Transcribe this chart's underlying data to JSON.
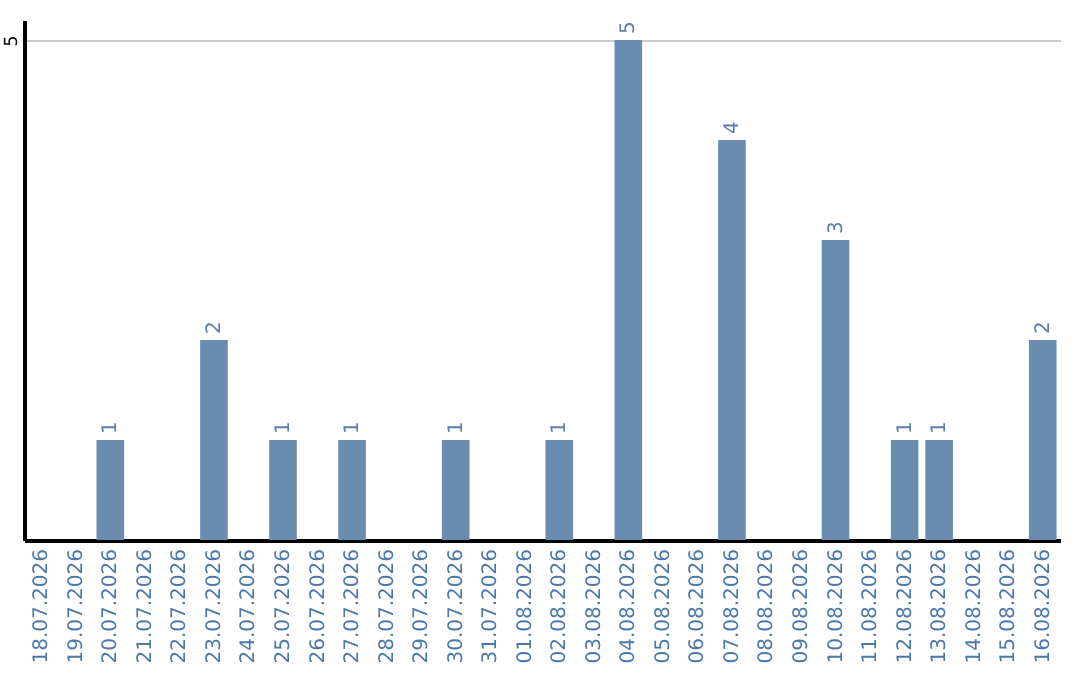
{
  "chart_data": {
    "type": "bar",
    "categories": [
      "18.07.2026",
      "19.07.2026",
      "20.07.2026",
      "21.07.2026",
      "22.07.2026",
      "23.07.2026",
      "24.07.2026",
      "25.07.2026",
      "26.07.2026",
      "27.07.2026",
      "28.07.2026",
      "29.07.2026",
      "30.07.2026",
      "31.07.2026",
      "01.08.2026",
      "02.08.2026",
      "03.08.2026",
      "04.08.2026",
      "05.08.2026",
      "06.08.2026",
      "07.08.2026",
      "08.08.2026",
      "09.08.2026",
      "10.08.2026",
      "11.08.2026",
      "12.08.2026",
      "13.08.2026",
      "14.08.2026",
      "15.08.2026",
      "16.08.2026"
    ],
    "values": [
      0,
      0,
      1,
      0,
      0,
      2,
      0,
      1,
      0,
      1,
      0,
      0,
      1,
      0,
      0,
      1,
      0,
      5,
      0,
      0,
      4,
      0,
      0,
      3,
      0,
      1,
      1,
      0,
      0,
      2
    ],
    "value_labels": [
      null,
      null,
      "1",
      null,
      null,
      "2",
      null,
      "1",
      null,
      "1",
      null,
      null,
      "1",
      null,
      null,
      "1",
      null,
      "5",
      null,
      null,
      "4",
      null,
      null,
      "3",
      null,
      "1",
      "1",
      null,
      null,
      "2"
    ],
    "color": "#6a8caf",
    "ylim": [
      0,
      5.2
    ],
    "yticks": [
      5
    ],
    "grid": "y"
  }
}
